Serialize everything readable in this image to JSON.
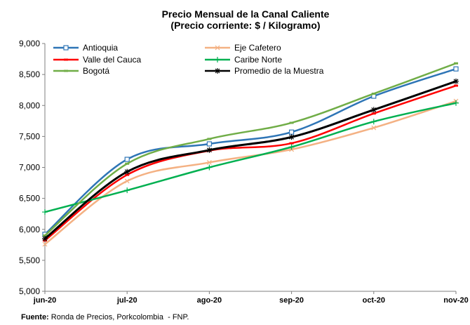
{
  "chart_data": {
    "type": "line",
    "title": "Precio Mensual de la Canal Caliente",
    "subtitle": "(Precio corriente: $ / Kilogramo)",
    "xlabel": "",
    "ylabel": "",
    "categories": [
      "jun-20",
      "jul-20",
      "ago-20",
      "sep-20",
      "oct-20",
      "nov-20"
    ],
    "ylim": [
      5000,
      9000
    ],
    "yticks": [
      5000,
      5500,
      6000,
      6500,
      7000,
      7500,
      8000,
      8500,
      9000
    ],
    "ytick_labels": [
      "5,000",
      "5,500",
      "6,000",
      "6,500",
      "7,000",
      "7,500",
      "8,000",
      "8,500",
      "9,000"
    ],
    "grid": false,
    "legend_position": "top-left",
    "series": [
      {
        "name": "Antioquia",
        "color": "#2e75b6",
        "marker": "square",
        "values": [
          5920,
          7130,
          7380,
          7570,
          8150,
          8590
        ]
      },
      {
        "name": "Eje Cafetero",
        "color": "#f4b183",
        "marker": "x",
        "values": [
          5760,
          6780,
          7080,
          7290,
          7640,
          8070
        ]
      },
      {
        "name": "Valle del Cauca",
        "color": "#ff0000",
        "marker": "dash",
        "values": [
          5820,
          6880,
          7270,
          7390,
          7870,
          8320
        ]
      },
      {
        "name": "Caribe Norte",
        "color": "#00b050",
        "marker": "plus",
        "values": [
          6280,
          6630,
          7000,
          7330,
          7740,
          8040
        ]
      },
      {
        "name": "Bogotá",
        "color": "#70ad47",
        "marker": "dash",
        "values": [
          5900,
          7060,
          7460,
          7720,
          8190,
          8680
        ]
      },
      {
        "name": "Promedio de la Muestra",
        "color": "#000000",
        "marker": "star",
        "values": [
          5850,
          6930,
          7280,
          7490,
          7930,
          8390
        ]
      }
    ]
  },
  "source": {
    "label": "Fuente:",
    "text": " Ronda de Precios, Porkcolombia  - FNP."
  }
}
